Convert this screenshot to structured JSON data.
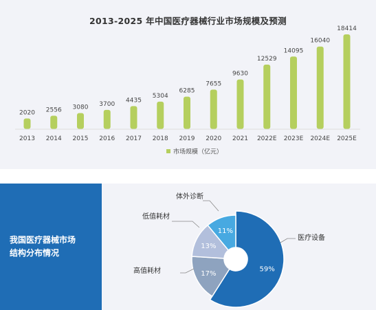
{
  "bar_chart": {
    "title": "2013-2025 年中国医疗器械行业市场规模及预测",
    "legend": "市场规模（亿元）",
    "bar_color": "#b5cf5e"
  },
  "pie_panel": {
    "label": "我国医疗器械市场\n结构分布情况",
    "panel_color": "#1f6db5"
  },
  "chart_data": [
    {
      "type": "bar",
      "title": "2013-2025 年中国医疗器械行业市场规模及预测",
      "categories": [
        "2013",
        "2014",
        "2015",
        "2016",
        "2017",
        "2018",
        "2019",
        "2020",
        "2021",
        "2022E",
        "2023E",
        "2024E",
        "2025E"
      ],
      "series": [
        {
          "name": "市场规模（亿元）",
          "values": [
            2020,
            2556,
            3080,
            3700,
            4435,
            5304,
            6285,
            7655,
            9630,
            12529,
            14095,
            16040,
            18414
          ]
        }
      ],
      "data_labels": [
        "2020",
        "2556",
        "3080",
        "3700",
        "4435",
        "5304",
        "6285",
        "7655",
        "9630",
        "12529",
        "14095",
        "16040",
        "18414"
      ],
      "legend_position": "bottom",
      "grid": false,
      "ylim": [
        0,
        18414
      ]
    },
    {
      "type": "pie",
      "donut": true,
      "slices": [
        {
          "label": "医疗设备",
          "value": 59,
          "value_label": "59%",
          "color": "#1f6db5"
        },
        {
          "label": "高值耗材",
          "value": 17,
          "value_label": "17%",
          "color": "#8ea3bf"
        },
        {
          "label": "低值耗材",
          "value": 13,
          "value_label": "13%",
          "color": "#b2bfdc"
        },
        {
          "label": "体外诊断",
          "value": 11,
          "value_label": "11%",
          "color": "#47a9e1"
        }
      ]
    }
  ]
}
